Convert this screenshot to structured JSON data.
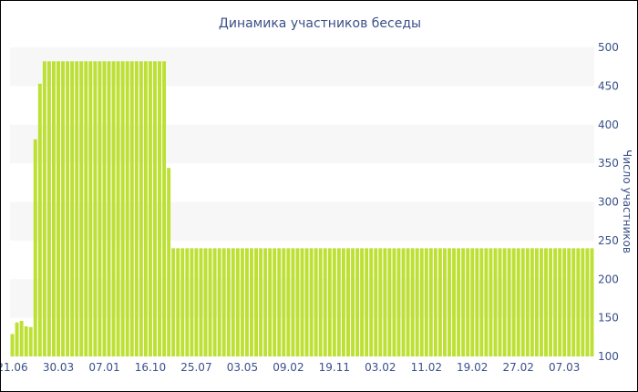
{
  "chart_data": {
    "type": "bar",
    "title": "Динамика участников беседы",
    "xlabel": "",
    "ylabel": "Число участников",
    "ylim": [
      100,
      500
    ],
    "y_ticks": [
      100,
      150,
      200,
      250,
      300,
      350,
      400,
      450,
      500
    ],
    "y_axis_position": "right",
    "x_tick_labels": [
      "21.06",
      "30.03",
      "07.01",
      "16.10",
      "25.07",
      "03.05",
      "09.02",
      "19.11",
      "03.02",
      "11.02",
      "19.02",
      "27.02",
      "07.03"
    ],
    "x_tick_bar_index": [
      0,
      10,
      20,
      30,
      40,
      50,
      60,
      70,
      80,
      90,
      100,
      110,
      120
    ],
    "grid": "alternating horizontal bands",
    "legend": "none",
    "colors": {
      "bar": "#bde034",
      "band": "#f7f7f7",
      "text": "#3a5088"
    },
    "values": [
      129,
      144,
      146,
      139,
      138,
      381,
      453,
      482,
      482,
      482,
      482,
      482,
      482,
      482,
      482,
      482,
      482,
      482,
      482,
      482,
      482,
      482,
      482,
      482,
      482,
      482,
      482,
      482,
      482,
      482,
      482,
      482,
      482,
      482,
      344,
      240,
      240,
      240,
      240,
      240,
      240,
      240,
      240,
      240,
      240,
      240,
      240,
      240,
      240,
      240,
      240,
      240,
      240,
      240,
      240,
      240,
      240,
      240,
      240,
      240,
      240,
      240,
      240,
      240,
      240,
      240,
      240,
      240,
      240,
      240,
      240,
      240,
      240,
      240,
      240,
      240,
      240,
      240,
      240,
      240,
      240,
      240,
      240,
      240,
      240,
      240,
      240,
      240,
      240,
      240,
      240,
      240,
      240,
      240,
      240,
      240,
      240,
      240,
      240,
      240,
      240,
      240,
      240,
      240,
      240,
      240,
      240,
      240,
      240,
      240,
      240,
      240,
      240,
      240,
      240,
      240,
      240,
      240,
      240,
      240,
      240,
      240,
      240,
      240,
      240,
      240,
      240
    ]
  }
}
